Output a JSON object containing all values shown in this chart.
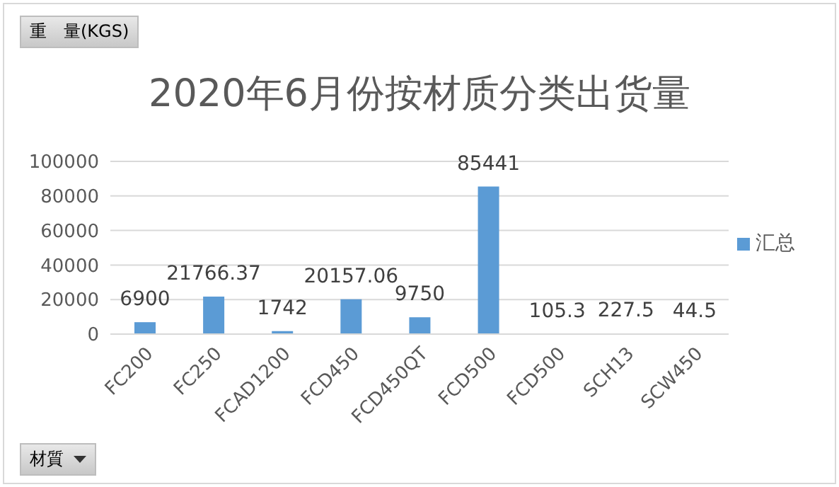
{
  "chart_data": {
    "type": "bar",
    "title": "2020年6月份按材质分类出货量",
    "annotations": [
      "重　量(KGS)"
    ],
    "xlabel": "材質",
    "categories": [
      "FC200",
      "FC250",
      "FCAD1200",
      "FCD450",
      "FCD450QT",
      "FCD500",
      "FCD500",
      "SCH13",
      "SCW450"
    ],
    "series": [
      {
        "name": "汇总",
        "color": "#5b9bd5",
        "values": [
          6900,
          21766.37,
          1742,
          20157.06,
          9750,
          85441,
          105.3,
          227.5,
          44.5
        ]
      }
    ],
    "ylim": [
      0,
      100000
    ],
    "yticks": [
      0,
      20000,
      40000,
      60000,
      80000,
      100000
    ],
    "grid": "y",
    "legend": "right",
    "data_labels": true
  }
}
